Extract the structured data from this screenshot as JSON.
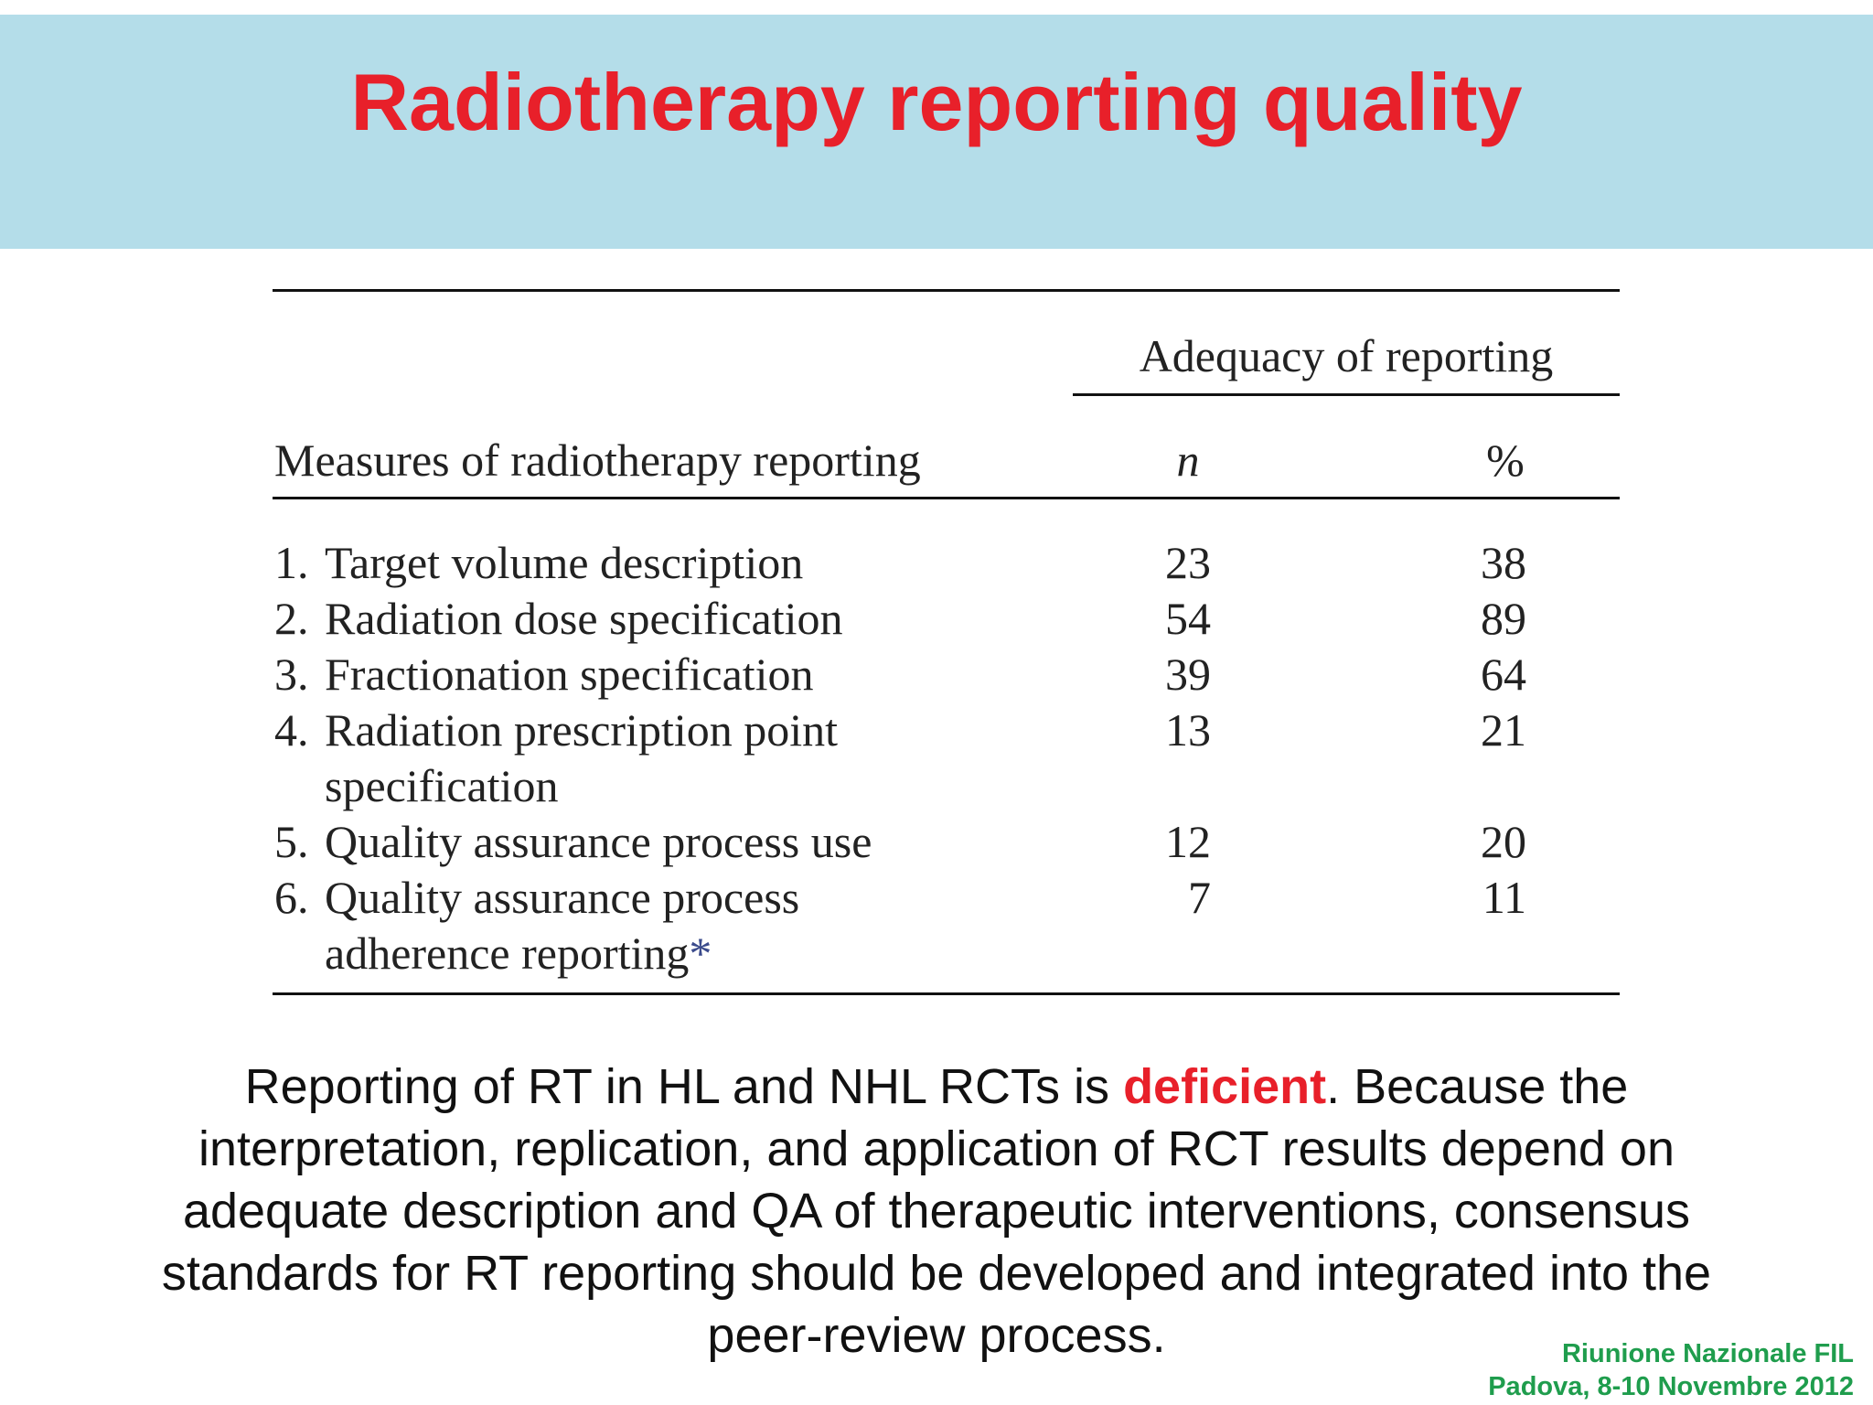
{
  "header": {
    "title": "Radiotherapy reporting quality"
  },
  "table": {
    "group_header": "Adequacy of reporting",
    "columns": [
      "Measures of radiotherapy reporting",
      "n",
      "%"
    ],
    "rows": [
      {
        "number": "1.",
        "text_lines": [
          "Target volume description"
        ],
        "n": "23",
        "percent": "38"
      },
      {
        "number": "2.",
        "text_lines": [
          "Radiation dose specification"
        ],
        "n": "54",
        "percent": "89"
      },
      {
        "number": "3.",
        "text_lines": [
          "Fractionation specification"
        ],
        "n": "39",
        "percent": "64"
      },
      {
        "number": "4.",
        "text_lines": [
          "Radiation prescription point",
          "specification"
        ],
        "n": "13",
        "percent": "21"
      },
      {
        "number": "5.",
        "text_lines": [
          "Quality assurance process use"
        ],
        "n": "12",
        "percent": "20"
      },
      {
        "number": "6.",
        "text_lines": [
          "Quality assurance process",
          "adherence reporting"
        ],
        "note_marker": "*",
        "n": "7",
        "percent": "11"
      }
    ]
  },
  "body": {
    "line1_before": "Reporting of RT in HL and NHL RCTs is ",
    "emphasis": "deficient",
    "line1_after": ". Because the",
    "lines": [
      "interpretation, replication, and application of RCT results depend on",
      "adequate description and QA of therapeutic interventions, consensus",
      "standards for RT reporting should be developed and integrated into the",
      "peer-review process."
    ]
  },
  "footer": {
    "lines": [
      "Riunione Nazionale FIL",
      "Padova, 8-10 Novembre 2012"
    ]
  }
}
